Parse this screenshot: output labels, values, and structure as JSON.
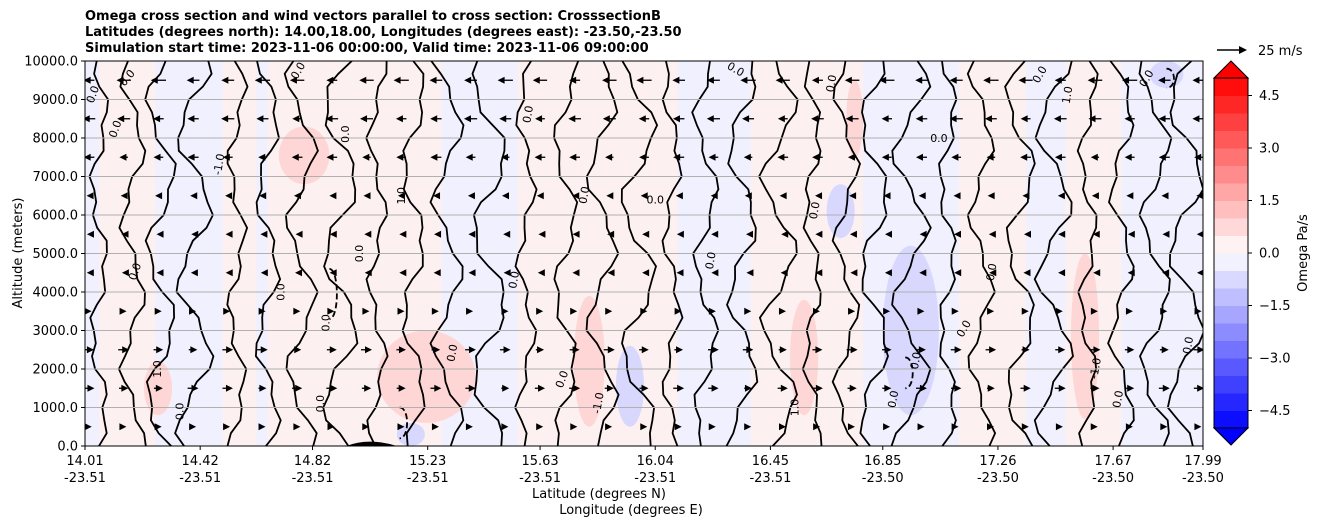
{
  "chart_data": {
    "type": "heatmap",
    "title_lines": [
      "Omega cross section and wind vectors parallel to cross section: CrosssectionB",
      "Latitudes (degrees north): 14.00,18.00, Longitudes (degrees east): -23.50,-23.50",
      "Simulation start time: 2023-11-06 00:00:00, Valid time: 2023-11-06 09:00:00"
    ],
    "ylabel": "Altitude (meters)",
    "xlabel_lat": "Latitude (degrees N)",
    "xlabel_lon": "Longitude (degrees E)",
    "ylim": [
      0,
      10000
    ],
    "y_ticks": [
      "0.0",
      "1000.0",
      "2000.0",
      "3000.0",
      "4000.0",
      "5000.0",
      "6000.0",
      "7000.0",
      "8000.0",
      "9000.0",
      "10000.0"
    ],
    "x_ticks": [
      {
        "lat": "14.01",
        "lon": "-23.51"
      },
      {
        "lat": "14.42",
        "lon": "-23.51"
      },
      {
        "lat": "14.82",
        "lon": "-23.51"
      },
      {
        "lat": "15.23",
        "lon": "-23.51"
      },
      {
        "lat": "15.63",
        "lon": "-23.51"
      },
      {
        "lat": "16.04",
        "lon": "-23.51"
      },
      {
        "lat": "16.45",
        "lon": "-23.51"
      },
      {
        "lat": "16.85",
        "lon": "-23.50"
      },
      {
        "lat": "17.26",
        "lon": "-23.50"
      },
      {
        "lat": "17.67",
        "lon": "-23.50"
      },
      {
        "lat": "17.99",
        "lon": "-23.50"
      }
    ],
    "grid": true,
    "colorbar": {
      "label": "Omega Pa/s",
      "range": [
        -5,
        5
      ],
      "ticks": [
        "4.5",
        "3.0",
        "1.5",
        "0.0",
        "−1.5",
        "−3.0",
        "−4.5"
      ],
      "extend": "both",
      "low_color": "#0000ff",
      "high_color": "#ff0000"
    },
    "vector_key": {
      "label": "25 m/s",
      "value": 25
    },
    "contour_labels": [
      "0.0",
      "1.0",
      "-1.0"
    ],
    "positive_regions": [
      {
        "lat": [
          14.7,
          14.88
        ],
        "alt": [
          6800,
          8300
        ]
      },
      {
        "lat": [
          14.22,
          14.32
        ],
        "alt": [
          800,
          2200
        ]
      },
      {
        "lat": [
          15.05,
          15.4
        ],
        "alt": [
          600,
          3000
        ]
      },
      {
        "lat": [
          15.75,
          15.86
        ],
        "alt": [
          500,
          3900
        ]
      },
      {
        "lat": [
          16.52,
          16.62
        ],
        "alt": [
          800,
          3800
        ]
      },
      {
        "lat": [
          17.52,
          17.62
        ],
        "alt": [
          700,
          5000
        ]
      },
      {
        "lat": [
          16.72,
          16.78
        ],
        "alt": [
          7500,
          9500
        ]
      }
    ],
    "negative_regions": [
      {
        "lat": [
          16.85,
          17.05
        ],
        "alt": [
          800,
          5200
        ]
      },
      {
        "lat": [
          15.9,
          16.0
        ],
        "alt": [
          500,
          2600
        ]
      },
      {
        "lat": [
          16.65,
          16.75
        ],
        "alt": [
          5400,
          6800
        ]
      },
      {
        "lat": [
          17.8,
          17.92
        ],
        "alt": [
          9300,
          10000
        ]
      },
      {
        "lat": [
          15.12,
          15.22
        ],
        "alt": [
          0,
          600
        ]
      }
    ],
    "wind_rows": [
      {
        "alt": 9500,
        "direction": "left",
        "speed": 14
      },
      {
        "alt": 8500,
        "direction": "left",
        "speed": 12
      },
      {
        "alt": 7500,
        "direction": "left",
        "speed": 10
      },
      {
        "alt": 6500,
        "direction": "left",
        "speed": 6
      },
      {
        "alt": 5500,
        "direction": "left",
        "speed": 4
      },
      {
        "alt": 4500,
        "direction": "left",
        "speed": 4
      },
      {
        "alt": 3500,
        "direction": "right",
        "speed": 6
      },
      {
        "alt": 2500,
        "direction": "right",
        "speed": 10
      },
      {
        "alt": 1500,
        "direction": "right",
        "speed": 10
      },
      {
        "alt": 500,
        "direction": "right",
        "speed": 6
      }
    ]
  }
}
